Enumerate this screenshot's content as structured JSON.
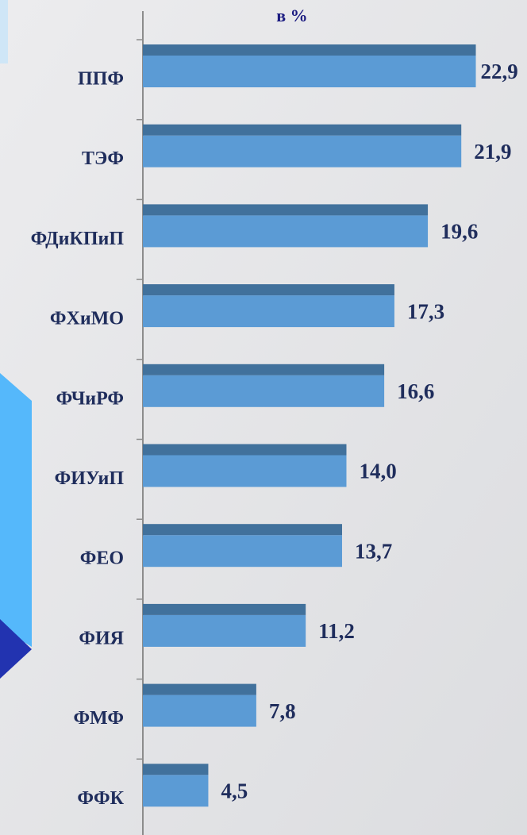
{
  "chart_data": {
    "type": "bar",
    "orientation": "horizontal",
    "title": "в %",
    "categories": [
      "ППФ",
      "ТЭФ",
      "ФДиКПиП",
      "ФХиМО",
      "ФЧиРФ",
      "ФИУиП",
      "ФЕО",
      "ФИЯ",
      "ФМФ",
      "ФФК"
    ],
    "values": [
      22.9,
      21.9,
      19.6,
      17.3,
      16.6,
      14.0,
      13.7,
      11.2,
      7.8,
      4.5
    ],
    "value_labels": [
      "22,9",
      "21,9",
      "19,6",
      "17,3",
      "16,6",
      "14,0",
      "13,7",
      "11,2",
      "7,8",
      "4,5"
    ],
    "color": "#5b9bd5",
    "xlim": [
      0,
      25
    ]
  }
}
